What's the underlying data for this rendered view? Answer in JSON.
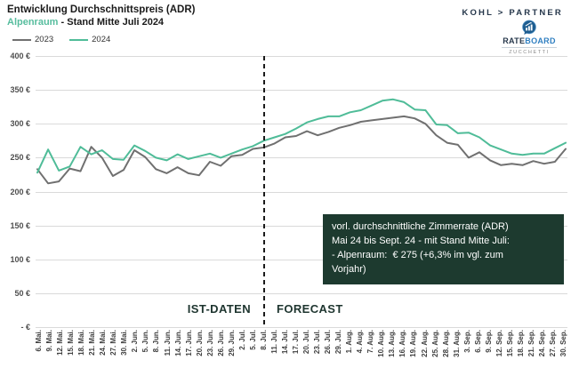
{
  "header": {
    "title": "Entwicklung Durchschnittspreis (ADR)",
    "subtitle_region": "Alpenraum",
    "subtitle_rest": " - Stand Mitte Juli 2024"
  },
  "branding": {
    "partner_name": "KOHL > PARTNER",
    "rateboard": {
      "rate": "RATE",
      "board": "BOARD",
      "sub": "ZUCCHETTI"
    },
    "colors": {
      "navy": "#26374b",
      "board_blue": "#2f7fc1",
      "bubble_fill": "#1d5c8f"
    }
  },
  "chart_data": {
    "type": "line",
    "title": "Entwicklung Durchschnittspreis (ADR)",
    "subtitle": "Alpenraum - Stand Mitte Juli 2024",
    "xlabel": "",
    "ylabel": "",
    "grid": true,
    "legend_position": "top-left",
    "ylim": [
      0,
      400
    ],
    "ytick_values": [
      400,
      350,
      300,
      250,
      200,
      150,
      100,
      50,
      0
    ],
    "ytick_labels": [
      "400 €",
      "350 €",
      "300 €",
      "250 €",
      "200 €",
      "150 €",
      "100 €",
      "50 €",
      "- €"
    ],
    "categories": [
      "6. Mai.",
      "9. Mai.",
      "12. Mai.",
      "15. Mai.",
      "18. Mai.",
      "21. Mai.",
      "24. Mai.",
      "27. Mai.",
      "30. Mai.",
      "2. Jun.",
      "5. Jun.",
      "8. Jun.",
      "11. Jun.",
      "14. Jun.",
      "17. Jun.",
      "20. Jun.",
      "23. Jun.",
      "26. Jun.",
      "29. Jun.",
      "2. Jul.",
      "5. Jul.",
      "8. Jul.",
      "11. Jul.",
      "14. Jul.",
      "17. Jul.",
      "20. Jul.",
      "23. Jul.",
      "26. Jul.",
      "29. Jul.",
      "1. Aug.",
      "4. Aug.",
      "7. Aug.",
      "10. Aug.",
      "13. Aug.",
      "16. Aug.",
      "19. Aug.",
      "22. Aug.",
      "25. Aug.",
      "28. Aug.",
      "31. Aug.",
      "3. Sep.",
      "6. Sep.",
      "9. Sep.",
      "12. Sep.",
      "15. Sep.",
      "18. Sep.",
      "21. Sep.",
      "24. Sep.",
      "27. Sep.",
      "30. Sep."
    ],
    "series": [
      {
        "name": "2023",
        "color": "#707070",
        "values": [
          233,
          212,
          215,
          234,
          230,
          266,
          250,
          223,
          232,
          261,
          251,
          233,
          227,
          236,
          227,
          224,
          244,
          238,
          252,
          254,
          263,
          265,
          271,
          280,
          282,
          289,
          283,
          288,
          294,
          298,
          303,
          305,
          307,
          309,
          311,
          308,
          300,
          283,
          272,
          269,
          250,
          258,
          246,
          239,
          241,
          239,
          245,
          241,
          244,
          263
        ]
      },
      {
        "name": "2024",
        "color": "#4fbc98",
        "values": [
          228,
          262,
          231,
          237,
          266,
          255,
          261,
          248,
          247,
          268,
          260,
          250,
          246,
          255,
          248,
          252,
          256,
          250,
          256,
          262,
          267,
          275,
          280,
          285,
          293,
          302,
          307,
          311,
          311,
          317,
          320,
          327,
          334,
          336,
          332,
          321,
          320,
          299,
          298,
          286,
          287,
          280,
          268,
          262,
          256,
          254,
          256,
          256,
          264,
          272
        ]
      }
    ],
    "divider": {
      "category": "8. Jul.",
      "index": 21,
      "style": "dashed"
    },
    "zones": {
      "left": "IST-DATEN",
      "right": "FORECAST"
    },
    "annotation": {
      "bg": "#1d3a2f",
      "color": "#ffffff",
      "lines": [
        "vorl. durchschnittliche Zimmerrate (ADR)",
        "Mai 24 bis Sept. 24 - mit Stand Mitte Juli:",
        "- Alpenraum:  € 275 (+6,3% im vgl. zum",
        "Vorjahr)"
      ]
    }
  }
}
